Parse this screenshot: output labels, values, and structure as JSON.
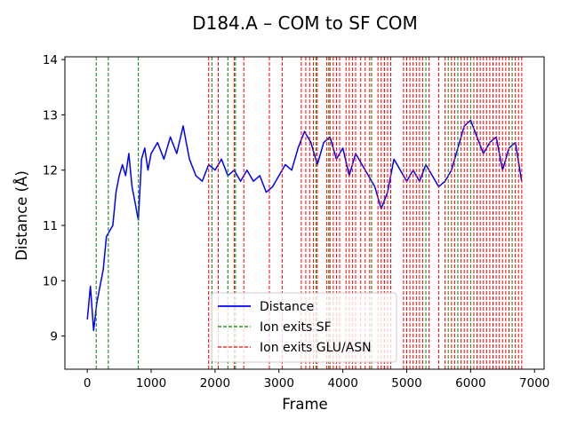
{
  "chart_data": {
    "type": "line",
    "title": "D184.A – COM to SF COM",
    "xlabel": "Frame",
    "ylabel": "Distance (Å)",
    "xlim": [
      -350,
      7150
    ],
    "ylim": [
      8.4,
      14.05
    ],
    "xticks": [
      0,
      1000,
      2000,
      3000,
      4000,
      5000,
      6000,
      7000
    ],
    "yticks": [
      9,
      10,
      11,
      12,
      13,
      14
    ],
    "grid": false,
    "legend_position": "lower center",
    "colors": {
      "distance": "#0000ff",
      "sf_exit": "#008000",
      "glu_asn_exit": "#ff0000"
    },
    "series": [
      {
        "name": "Distance",
        "x": [
          0,
          50,
          100,
          150,
          200,
          250,
          300,
          350,
          400,
          450,
          500,
          550,
          600,
          650,
          700,
          750,
          800,
          850,
          900,
          950,
          1000,
          1100,
          1200,
          1300,
          1400,
          1500,
          1550,
          1600,
          1700,
          1800,
          1900,
          2000,
          2100,
          2200,
          2300,
          2400,
          2500,
          2600,
          2700,
          2800,
          2900,
          3000,
          3100,
          3200,
          3300,
          3400,
          3500,
          3600,
          3700,
          3800,
          3900,
          4000,
          4100,
          4200,
          4300,
          4400,
          4500,
          4600,
          4700,
          4800,
          4900,
          5000,
          5100,
          5200,
          5300,
          5400,
          5500,
          5600,
          5700,
          5800,
          5900,
          6000,
          6100,
          6200,
          6300,
          6400,
          6500,
          6600,
          6700,
          6800
        ],
        "y": [
          9.3,
          9.9,
          9.1,
          9.6,
          9.9,
          10.2,
          10.8,
          10.9,
          11.0,
          11.6,
          11.9,
          12.1,
          11.9,
          12.3,
          11.7,
          11.4,
          11.1,
          12.2,
          12.4,
          12.0,
          12.3,
          12.5,
          12.2,
          12.6,
          12.3,
          12.8,
          12.5,
          12.2,
          11.9,
          11.8,
          12.1,
          12.0,
          12.2,
          11.9,
          12.0,
          11.8,
          12.0,
          11.8,
          11.9,
          11.6,
          11.7,
          11.9,
          12.1,
          12.0,
          12.4,
          12.7,
          12.5,
          12.1,
          12.5,
          12.6,
          12.2,
          12.4,
          11.9,
          12.3,
          12.1,
          11.9,
          11.7,
          11.3,
          11.6,
          12.2,
          12.0,
          11.8,
          12.0,
          11.8,
          12.1,
          11.9,
          11.7,
          11.8,
          12.0,
          12.4,
          12.8,
          12.9,
          12.6,
          12.3,
          12.5,
          12.6,
          12.0,
          12.4,
          12.5,
          11.8
        ]
      }
    ],
    "vlines": [
      {
        "name": "Ion exits SF",
        "x": [
          140,
          330,
          800,
          1950,
          2200,
          2320,
          3580,
          3780,
          4450,
          4650,
          4750,
          5300,
          5650,
          5800,
          6000,
          6650
        ]
      },
      {
        "name": "Ion exits GLU/ASN",
        "x": [
          1900,
          2050,
          2300,
          2450,
          2850,
          3050,
          3350,
          3420,
          3480,
          3540,
          3600,
          3750,
          3800,
          3850,
          3900,
          3950,
          4050,
          4100,
          4150,
          4200,
          4280,
          4350,
          4420,
          4550,
          4600,
          4650,
          4700,
          4750,
          4950,
          5000,
          5050,
          5100,
          5150,
          5200,
          5250,
          5350,
          5500,
          5600,
          5700,
          5750,
          5850,
          5900,
          5950,
          6050,
          6100,
          6150,
          6200,
          6250,
          6300,
          6350,
          6400,
          6450,
          6500,
          6550,
          6600,
          6700,
          6750,
          6800
        ]
      }
    ]
  }
}
